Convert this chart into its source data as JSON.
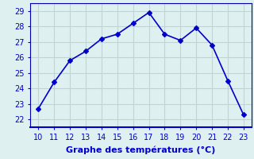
{
  "x": [
    10,
    11,
    12,
    13,
    14,
    15,
    16,
    17,
    18,
    19,
    20,
    21,
    22,
    23
  ],
  "y": [
    22.7,
    24.4,
    25.8,
    26.4,
    27.2,
    27.5,
    28.2,
    28.9,
    27.5,
    27.1,
    27.9,
    26.8,
    24.5,
    22.3
  ],
  "line_color": "#0000cc",
  "marker": "D",
  "marker_size": 3,
  "line_width": 1.2,
  "xlabel": "Graphe des températures (°C)",
  "xlabel_fontsize": 8,
  "ylabel_ticks": [
    22,
    23,
    24,
    25,
    26,
    27,
    28,
    29
  ],
  "xlim": [
    9.5,
    23.5
  ],
  "ylim": [
    21.5,
    29.5
  ],
  "xticks": [
    10,
    11,
    12,
    13,
    14,
    15,
    16,
    17,
    18,
    19,
    20,
    21,
    22,
    23
  ],
  "background_color": "#dff0f0",
  "grid_color": "#c0d4d4",
  "tick_fontsize": 7,
  "tick_color": "#0000cc",
  "label_color": "#0000cc",
  "axis_color": "#0000aa",
  "spine_bottom_color": "#0000cc"
}
